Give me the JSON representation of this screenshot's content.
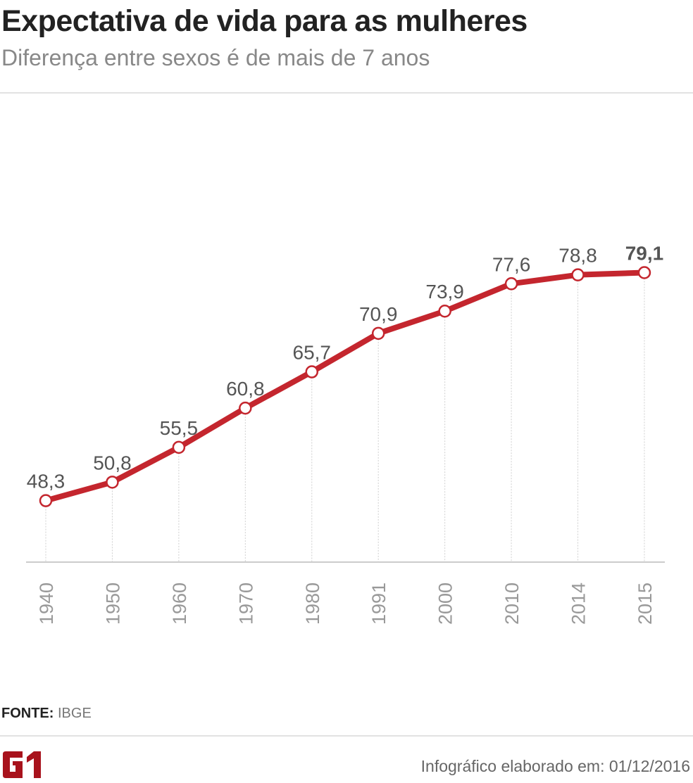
{
  "header": {
    "title": "Expectativa de vida para as mulheres",
    "subtitle": "Diferença entre sexos é de mais de 7 anos"
  },
  "chart_data": {
    "type": "line",
    "title": "Expectativa de vida para as mulheres",
    "subtitle": "Diferença entre sexos é de mais de 7 anos",
    "categories": [
      "1940",
      "1950",
      "1960",
      "1970",
      "1980",
      "1991",
      "2000",
      "2010",
      "2014",
      "2015"
    ],
    "values": [
      48.3,
      50.8,
      55.5,
      60.8,
      65.7,
      70.9,
      73.9,
      77.6,
      78.8,
      79.1
    ],
    "labels": [
      "48,3",
      "50,8",
      "55,5",
      "60,8",
      "65,7",
      "70,9",
      "73,9",
      "77,6",
      "78,8",
      "79,1"
    ],
    "ylim": [
      40,
      103
    ],
    "grid": "vertical dotted lines at each category",
    "line_color": "#c4262e",
    "marker": "white circle with red outline"
  },
  "footer": {
    "source_label": "FONTE:",
    "source_value": "IBGE",
    "logo_text": "G1",
    "credit": "Infográfico elaborado em: 01/12/2016"
  },
  "colors": {
    "accent": "#c4262e",
    "logo": "#a8121c"
  }
}
